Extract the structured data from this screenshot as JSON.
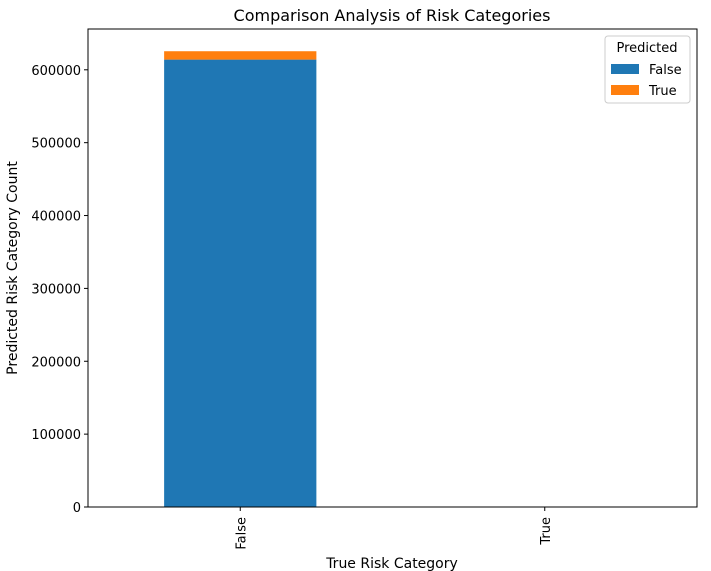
{
  "chart_data": {
    "type": "bar",
    "stacked": true,
    "title": "Comparison Analysis of Risk Categories",
    "xlabel": "True Risk Category",
    "ylabel": "Predicted Risk Category Count",
    "categories": [
      "False",
      "True"
    ],
    "series": [
      {
        "name": "False",
        "color": "#1f77b4",
        "values": [
          614000,
          0
        ]
      },
      {
        "name": "True",
        "color": "#ff7f0e",
        "values": [
          11500,
          0
        ]
      }
    ],
    "ylim": [
      0,
      656000
    ],
    "yticks": [
      0,
      100000,
      200000,
      300000,
      400000,
      500000,
      600000
    ],
    "ytick_labels": [
      "0",
      "100000",
      "200000",
      "300000",
      "400000",
      "500000",
      "600000"
    ],
    "legend": {
      "title": "Predicted",
      "position": "top-right"
    },
    "grid": false
  }
}
